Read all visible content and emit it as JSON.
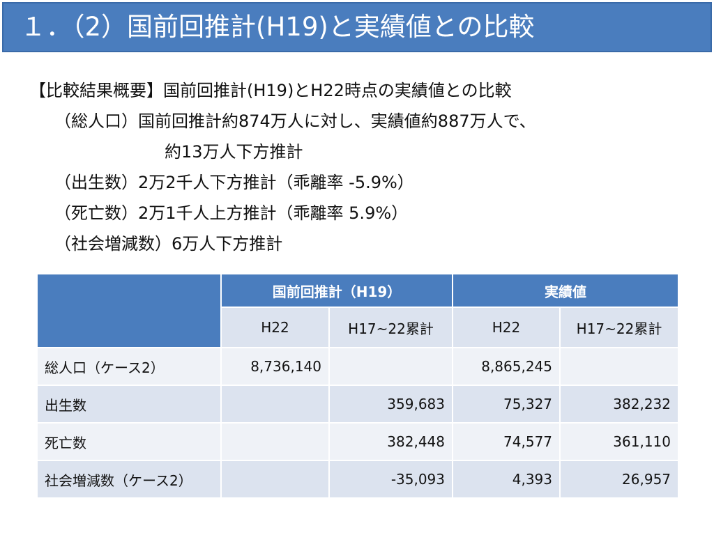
{
  "title": "１．（2）国前回推計(H19)と実績値との比較",
  "summary": {
    "heading": "【比較結果概要】国前回推計(H19)とH22時点の実績値との比較",
    "pop_line1": "（総人口）国前回推計約874万人に対し、実績値約887万人で、",
    "pop_line2": "約13万人下方推計",
    "births": "（出生数）2万2千人下方推計（乖離率 -5.9%）",
    "deaths": "（死亡数）2万1千人上方推計（乖離率 5.9%）",
    "social": "（社会増減数）6万人下方推計"
  },
  "table": {
    "group_headers": [
      "国前回推計（H19）",
      "実績値"
    ],
    "sub_headers": [
      "H22",
      "H17~22累計",
      "H22",
      "H17~22累計"
    ],
    "rows": [
      {
        "label": "総人口（ケース2）",
        "cells": [
          "8,736,140",
          "",
          "8,865,245",
          ""
        ]
      },
      {
        "label": "出生数",
        "cells": [
          "",
          "359,683",
          "75,327",
          "382,232"
        ]
      },
      {
        "label": "死亡数",
        "cells": [
          "",
          "382,448",
          "74,577",
          "361,110"
        ]
      },
      {
        "label": "社会増減数（ケース2）",
        "cells": [
          "",
          "-35,093",
          "4,393",
          "26,957"
        ]
      }
    ]
  }
}
